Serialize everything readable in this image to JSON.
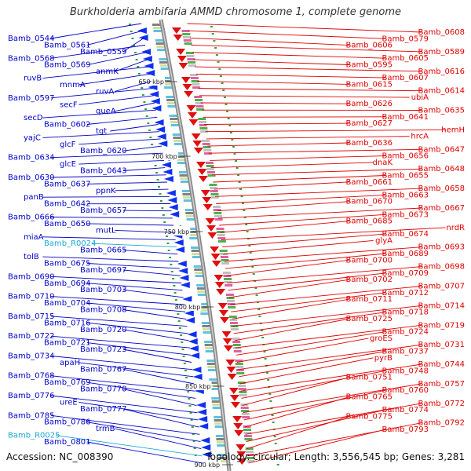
{
  "title": "Burkholderia ambifaria AMMD chromosome 1, complete genome",
  "accession": "Accession: NC_008390",
  "topology": "Topology: circular; Length: 3,556,545 bp; Genes: 3,281",
  "scale_labels": [
    "650 kbp",
    "700 kbp",
    "750 kbp",
    "800 kbp",
    "850 kbp",
    "900 kbp"
  ],
  "colors": {
    "left_labels": "#0000c8",
    "right_labels": "#e00000",
    "rna_labels": "#1aa8d8",
    "backbone": "#8a8a8a"
  },
  "left_labels": [
    {
      "text": "Bamb_0544"
    },
    {
      "text": "Bamb_0561"
    },
    {
      "text": "Bamb_0559"
    },
    {
      "text": "Bamb_0568"
    },
    {
      "text": "Bamb_0569"
    },
    {
      "text": "anmK"
    },
    {
      "text": "ruvB"
    },
    {
      "text": "mnmA"
    },
    {
      "text": "ruvA"
    },
    {
      "text": "Bamb_0597"
    },
    {
      "text": "secF"
    },
    {
      "text": "queA"
    },
    {
      "text": "secD"
    },
    {
      "text": "Bamb_0602"
    },
    {
      "text": "tgt"
    },
    {
      "text": "yajC"
    },
    {
      "text": "glcF"
    },
    {
      "text": "Bamb_0620"
    },
    {
      "text": "Bamb_0634"
    },
    {
      "text": "glcE"
    },
    {
      "text": "Bamb_0643"
    },
    {
      "text": "Bamb_0630"
    },
    {
      "text": "Bamb_0637"
    },
    {
      "text": "ppnK"
    },
    {
      "text": "panB"
    },
    {
      "text": "Bamb_0642"
    },
    {
      "text": "Bamb_0657"
    },
    {
      "text": "Bamb_0666"
    },
    {
      "text": "Bamb_0650"
    },
    {
      "text": "mutL"
    },
    {
      "text": "miaA"
    },
    {
      "text": "Bamb_R0024",
      "rna": true
    },
    {
      "text": "Bamb_0665"
    },
    {
      "text": "tolB"
    },
    {
      "text": "Bamb_0675"
    },
    {
      "text": "Bamb_0697"
    },
    {
      "text": "Bamb_0690"
    },
    {
      "text": "Bamb_0694"
    },
    {
      "text": "Bamb_0703"
    },
    {
      "text": "Bamb_0710"
    },
    {
      "text": "Bamb_0704"
    },
    {
      "text": "Bamb_0708"
    },
    {
      "text": "Bamb_0715"
    },
    {
      "text": "Bamb_0716"
    },
    {
      "text": "Bamb_0720"
    },
    {
      "text": "Bamb_0722"
    },
    {
      "text": "Bamb_0721"
    },
    {
      "text": "Bamb_0723"
    },
    {
      "text": "Bamb_0734"
    },
    {
      "text": "apaH"
    },
    {
      "text": "Bamb_0767"
    },
    {
      "text": "Bamb_0768"
    },
    {
      "text": "Bamb_0769"
    },
    {
      "text": "Bamb_0770"
    },
    {
      "text": "Bamb_0776"
    },
    {
      "text": "ureE"
    },
    {
      "text": "Bamb_0777"
    },
    {
      "text": "Bamb_0785"
    },
    {
      "text": "Bamb_0786"
    },
    {
      "text": "trmB"
    },
    {
      "text": "Bamb_R0025",
      "rna": true
    },
    {
      "text": "Bamb_0801"
    }
  ],
  "right_labels": [
    {
      "text": "Bamb_0608"
    },
    {
      "text": "Bamb_0579"
    },
    {
      "text": "Bamb_0606"
    },
    {
      "text": "Bamb_0589"
    },
    {
      "text": "Bamb_0605"
    },
    {
      "text": "Bamb_0595"
    },
    {
      "text": "Bamb_0616"
    },
    {
      "text": "Bamb_0607"
    },
    {
      "text": "Bamb_0615"
    },
    {
      "text": "Bamb_0614"
    },
    {
      "text": "ubiA"
    },
    {
      "text": "Bamb_0626"
    },
    {
      "text": "Bamb_0635"
    },
    {
      "text": "Bamb_0641"
    },
    {
      "text": "Bamb_0627"
    },
    {
      "text": "hemH"
    },
    {
      "text": "hrcA"
    },
    {
      "text": "Bamb_0636"
    },
    {
      "text": "Bamb_0647"
    },
    {
      "text": "Bamb_0656"
    },
    {
      "text": "dnaK"
    },
    {
      "text": "Bamb_0648"
    },
    {
      "text": "Bamb_0655"
    },
    {
      "text": "Bamb_0661"
    },
    {
      "text": "Bamb_0658"
    },
    {
      "text": "Bamb_0663"
    },
    {
      "text": "Bamb_0670"
    },
    {
      "text": "Bamb_0667"
    },
    {
      "text": "Bamb_0673"
    },
    {
      "text": "Bamb_0685"
    },
    {
      "text": "nrdR"
    },
    {
      "text": "Bamb_0674"
    },
    {
      "text": "glyA"
    },
    {
      "text": "Bamb_0693"
    },
    {
      "text": "Bamb_0689"
    },
    {
      "text": "Bamb_0700"
    },
    {
      "text": "Bamb_0698"
    },
    {
      "text": "Bamb_0709"
    },
    {
      "text": "Bamb_0702"
    },
    {
      "text": "Bamb_0707"
    },
    {
      "text": "Bamb_0712"
    },
    {
      "text": "Bamb_0711"
    },
    {
      "text": "Bamb_0714"
    },
    {
      "text": "Bamb_0718"
    },
    {
      "text": "Bamb_0725"
    },
    {
      "text": "Bamb_0719"
    },
    {
      "text": "Bamb_0724"
    },
    {
      "text": "groES"
    },
    {
      "text": "Bamb_0731"
    },
    {
      "text": "Bamb_0737"
    },
    {
      "text": "pyrB"
    },
    {
      "text": "Bamb_0744"
    },
    {
      "text": "Bamb_0748"
    },
    {
      "text": "Bamb_0751"
    },
    {
      "text": "Bamb_0757"
    },
    {
      "text": "Bamb_0760"
    },
    {
      "text": "Bamb_0765"
    },
    {
      "text": "Bamb_0772"
    },
    {
      "text": "Bamb_0774"
    },
    {
      "text": "Bamb_0775"
    },
    {
      "text": "Bamb_0792"
    },
    {
      "text": "Bamb_0793"
    }
  ]
}
